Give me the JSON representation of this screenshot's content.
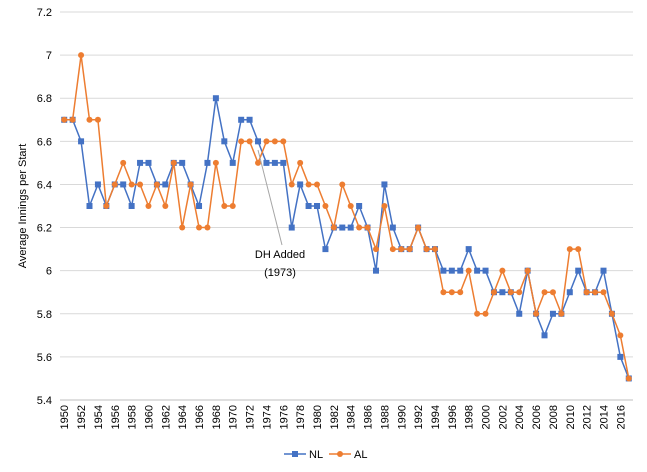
{
  "chart_data": {
    "type": "line",
    "title": "",
    "xlabel": "",
    "ylabel": "Average Innings per Start",
    "ylim": [
      5.4,
      7.2
    ],
    "yticks": [
      "5.4",
      "5.6",
      "5.8",
      "6",
      "6.2",
      "6.4",
      "6.6",
      "6.8",
      "7",
      "7.2"
    ],
    "xticks": [
      "1950",
      "1952",
      "1954",
      "1956",
      "1958",
      "1960",
      "1962",
      "1964",
      "1966",
      "1968",
      "1970",
      "1972",
      "1974",
      "1976",
      "1978",
      "1980",
      "1982",
      "1984",
      "1986",
      "1988",
      "1990",
      "1992",
      "1994",
      "1996",
      "1998",
      "2000",
      "2002",
      "2004",
      "2006",
      "2008",
      "2010",
      "2012",
      "2014",
      "2016"
    ],
    "x": [
      1950,
      1951,
      1952,
      1953,
      1954,
      1955,
      1956,
      1957,
      1958,
      1959,
      1960,
      1961,
      1962,
      1963,
      1964,
      1965,
      1966,
      1967,
      1968,
      1969,
      1970,
      1971,
      1972,
      1973,
      1974,
      1975,
      1976,
      1977,
      1978,
      1979,
      1980,
      1981,
      1982,
      1983,
      1984,
      1985,
      1986,
      1987,
      1988,
      1989,
      1990,
      1991,
      1992,
      1993,
      1994,
      1995,
      1996,
      1997,
      1998,
      1999,
      2000,
      2001,
      2002,
      2003,
      2004,
      2005,
      2006,
      2007,
      2008,
      2009,
      2010,
      2011,
      2012,
      2013,
      2014,
      2015,
      2016,
      2017
    ],
    "grid": "horizontal",
    "legend_position": "bottom",
    "series": [
      {
        "name": "NL",
        "color": "#4472C4",
        "marker": "square",
        "values": [
          6.7,
          6.7,
          6.6,
          6.3,
          6.4,
          6.3,
          6.4,
          6.4,
          6.3,
          6.5,
          6.5,
          6.4,
          6.4,
          6.5,
          6.5,
          6.4,
          6.3,
          6.5,
          6.8,
          6.6,
          6.5,
          6.7,
          6.7,
          6.6,
          6.5,
          6.5,
          6.5,
          6.2,
          6.4,
          6.3,
          6.3,
          6.1,
          6.2,
          6.2,
          6.2,
          6.3,
          6.2,
          6.0,
          6.4,
          6.2,
          6.1,
          6.1,
          6.2,
          6.1,
          6.1,
          6.0,
          6.0,
          6.0,
          6.1,
          6.0,
          6.0,
          5.9,
          5.9,
          5.9,
          5.8,
          6.0,
          5.8,
          5.7,
          5.8,
          5.8,
          5.9,
          6.0,
          5.9,
          5.9,
          6.0,
          5.8,
          5.6,
          5.5
        ]
      },
      {
        "name": "AL",
        "color": "#ED7D31",
        "marker": "circle",
        "values": [
          6.7,
          6.7,
          7.0,
          6.7,
          6.7,
          6.3,
          6.4,
          6.5,
          6.4,
          6.4,
          6.3,
          6.4,
          6.3,
          6.5,
          6.2,
          6.4,
          6.2,
          6.2,
          6.5,
          6.3,
          6.3,
          6.6,
          6.6,
          6.5,
          6.6,
          6.6,
          6.6,
          6.4,
          6.5,
          6.4,
          6.4,
          6.3,
          6.2,
          6.4,
          6.3,
          6.2,
          6.2,
          6.1,
          6.3,
          6.1,
          6.1,
          6.1,
          6.2,
          6.1,
          6.1,
          5.9,
          5.9,
          5.9,
          6.0,
          5.8,
          5.8,
          5.9,
          6.0,
          5.9,
          5.9,
          6.0,
          5.8,
          5.9,
          5.9,
          5.8,
          6.1,
          6.1,
          5.9,
          5.9,
          5.9,
          5.8,
          5.7,
          5.5
        ]
      }
    ],
    "annotation": {
      "line1": "DH Added",
      "line2": "(1973)",
      "x": 1973,
      "y": 6.6
    }
  }
}
